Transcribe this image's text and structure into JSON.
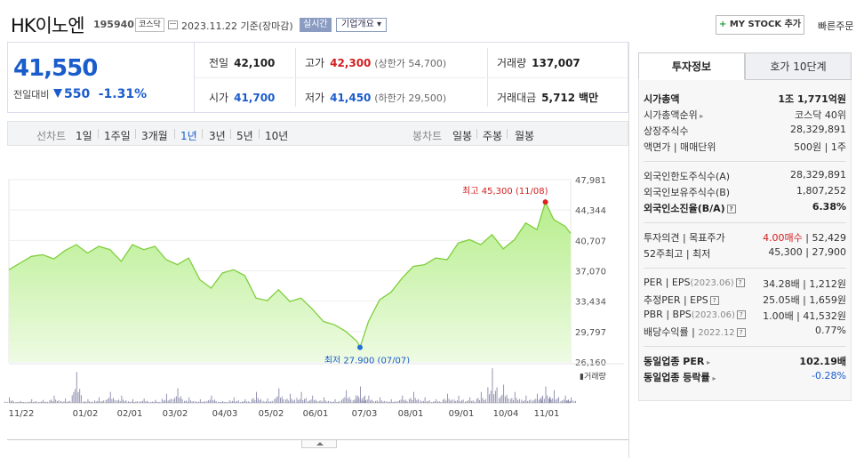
{
  "header": {
    "company_name": "HK이노엔",
    "stock_code": "195940",
    "market_badge": "코스닥",
    "date_text": "2023.11.22  기준(장마감)",
    "realtime_label": "실시간",
    "company_info_label": "기업개요 ▾",
    "mystock_plus": "+",
    "mystock_label": " MY STOCK 추가",
    "quick_order_label": "빠른주문"
  },
  "price": {
    "current": "41,550",
    "change_label": "전일대비",
    "change_value": "550",
    "change_pct": "-1.31%"
  },
  "summary": {
    "prev_close_label": "전일",
    "prev_close": "42,100",
    "high_label": "고가",
    "high": "42,300",
    "upper_limit": "(상한가 54,700)",
    "volume_label": "거래량",
    "volume": "137,007",
    "open_label": "시가",
    "open": "41,700",
    "low_label": "저가",
    "low": "41,450",
    "lower_limit": "(하한가 29,500)",
    "amount_label": "거래대금",
    "amount": "5,712",
    "amount_unit": "백만"
  },
  "chart_tabs": {
    "line_label": "선차트",
    "periods": [
      "1일",
      "1주일",
      "3개월",
      "1년",
      "3년",
      "5년",
      "10년"
    ],
    "active_period": "1년",
    "candle_label": "봉차트",
    "candles": [
      "일봉",
      "주봉",
      "월봉"
    ]
  },
  "chart_data": {
    "type": "area",
    "y_ticks": [
      "47,981",
      "44,344",
      "40,707",
      "37,070",
      "33,434",
      "29,797",
      "26,160"
    ],
    "ylim": [
      26160,
      47981
    ],
    "x_ticks": [
      "11/22",
      "01/02",
      "02/01",
      "03/02",
      "04/03",
      "05/02",
      "06/01",
      "07/03",
      "08/01",
      "09/01",
      "10/04",
      "11/01"
    ],
    "high_annotation": "최고 45,300 (11/08)",
    "low_annotation": "최저 27,900 (07/07)",
    "high_value": 45300,
    "low_value": 27900,
    "volume_legend": "거래량",
    "x": [
      0,
      0.02,
      0.04,
      0.06,
      0.08,
      0.1,
      0.12,
      0.14,
      0.16,
      0.18,
      0.2,
      0.22,
      0.24,
      0.26,
      0.28,
      0.3,
      0.32,
      0.34,
      0.36,
      0.38,
      0.4,
      0.42,
      0.44,
      0.46,
      0.48,
      0.5,
      0.52,
      0.54,
      0.56,
      0.58,
      0.6,
      0.62,
      0.625,
      0.64,
      0.66,
      0.68,
      0.7,
      0.72,
      0.74,
      0.76,
      0.78,
      0.8,
      0.82,
      0.84,
      0.86,
      0.88,
      0.9,
      0.92,
      0.94,
      0.955,
      0.97,
      0.99,
      1.0
    ],
    "values": [
      37200,
      38000,
      38800,
      39000,
      38500,
      39500,
      40200,
      39200,
      40000,
      39600,
      38200,
      40200,
      39600,
      40000,
      38400,
      37800,
      38600,
      36000,
      35000,
      36800,
      37200,
      36500,
      33800,
      33500,
      34800,
      33400,
      33800,
      32500,
      31000,
      30600,
      29800,
      28600,
      27900,
      31000,
      33600,
      34500,
      36200,
      37600,
      37800,
      38600,
      38400,
      40400,
      40800,
      40200,
      41400,
      39700,
      40800,
      42800,
      42000,
      45300,
      43200,
      42400,
      41550
    ],
    "volume_relative": [
      0.15,
      0.05,
      0.1,
      0.08,
      0.2,
      0.12,
      0.85,
      0.1,
      0.15,
      0.3,
      0.2,
      0.1,
      0.12,
      0.08,
      0.25,
      0.4,
      0.15,
      0.1,
      0.2,
      0.05,
      0.15,
      0.1,
      0.3,
      0.12,
      0.4,
      0.25,
      0.3,
      0.2,
      0.15,
      0.1,
      0.35,
      0.2,
      0.45,
      0.2,
      0.15,
      0.1,
      0.2,
      0.3,
      0.15,
      0.1,
      0.25,
      0.2,
      0.15,
      0.3,
      0.95,
      0.5,
      0.3,
      0.2,
      0.25,
      0.45,
      0.35,
      0.2,
      0.15
    ]
  },
  "right_panel": {
    "tab_invest": "투자정보",
    "tab_hoga": "호가 10단계",
    "rows": [
      {
        "k": "시가총액",
        "v": "1조 1,771억원"
      },
      {
        "k": "시가총액순위",
        "v": "코스닥 40위"
      },
      {
        "k": "상장주식수",
        "v": "28,329,891"
      },
      {
        "k": "액면가 | 매매단위",
        "v": "500원 | 1주"
      },
      {
        "k": "외국인한도주식수(A)",
        "v": "28,329,891"
      },
      {
        "k": "외국인보유주식수(B)",
        "v": "1,807,252"
      },
      {
        "k": "외국인소진율(B/A)",
        "v": "6.38%"
      },
      {
        "k": "투자의견 | 목표주가",
        "v_red": "4.00매수",
        "v": "| 52,429"
      },
      {
        "k": "52주최고 | 최저",
        "v": "45,300 | 27,900"
      },
      {
        "k": "PER | EPS",
        "k_gray": "(2023.06)",
        "v": "34.28배 | 1,212원"
      },
      {
        "k": "추정PER | EPS",
        "v": "25.05배 | 1,659원"
      },
      {
        "k": "PBR | BPS",
        "k_gray": "(2023.06)",
        "v": "1.00배 | 41,532원"
      },
      {
        "k": "배당수익률 |",
        "k_gray": "2022.12",
        "v": "0.77%"
      },
      {
        "k": "동일업종 PER",
        "v": "102.19배"
      },
      {
        "k": "동일업종 등락률",
        "v_blue": "-0.28%"
      }
    ]
  }
}
